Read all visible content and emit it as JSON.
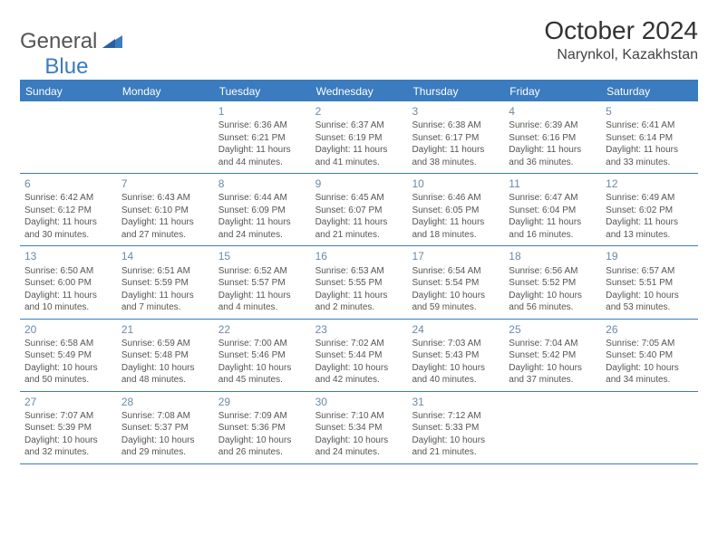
{
  "logo": {
    "text_gray": "General",
    "text_blue": "Blue"
  },
  "title": "October 2024",
  "location": "Narynkol, Kazakhstan",
  "colors": {
    "accent": "#3b7bbf",
    "text": "#333333",
    "muted": "#555555",
    "daynum": "#6a8aa8",
    "bg": "#ffffff"
  },
  "day_names": [
    "Sunday",
    "Monday",
    "Tuesday",
    "Wednesday",
    "Thursday",
    "Friday",
    "Saturday"
  ],
  "weeks": [
    [
      null,
      null,
      {
        "n": "1",
        "sr": "Sunrise: 6:36 AM",
        "ss": "Sunset: 6:21 PM",
        "dl": "Daylight: 11 hours and 44 minutes."
      },
      {
        "n": "2",
        "sr": "Sunrise: 6:37 AM",
        "ss": "Sunset: 6:19 PM",
        "dl": "Daylight: 11 hours and 41 minutes."
      },
      {
        "n": "3",
        "sr": "Sunrise: 6:38 AM",
        "ss": "Sunset: 6:17 PM",
        "dl": "Daylight: 11 hours and 38 minutes."
      },
      {
        "n": "4",
        "sr": "Sunrise: 6:39 AM",
        "ss": "Sunset: 6:16 PM",
        "dl": "Daylight: 11 hours and 36 minutes."
      },
      {
        "n": "5",
        "sr": "Sunrise: 6:41 AM",
        "ss": "Sunset: 6:14 PM",
        "dl": "Daylight: 11 hours and 33 minutes."
      }
    ],
    [
      {
        "n": "6",
        "sr": "Sunrise: 6:42 AM",
        "ss": "Sunset: 6:12 PM",
        "dl": "Daylight: 11 hours and 30 minutes."
      },
      {
        "n": "7",
        "sr": "Sunrise: 6:43 AM",
        "ss": "Sunset: 6:10 PM",
        "dl": "Daylight: 11 hours and 27 minutes."
      },
      {
        "n": "8",
        "sr": "Sunrise: 6:44 AM",
        "ss": "Sunset: 6:09 PM",
        "dl": "Daylight: 11 hours and 24 minutes."
      },
      {
        "n": "9",
        "sr": "Sunrise: 6:45 AM",
        "ss": "Sunset: 6:07 PM",
        "dl": "Daylight: 11 hours and 21 minutes."
      },
      {
        "n": "10",
        "sr": "Sunrise: 6:46 AM",
        "ss": "Sunset: 6:05 PM",
        "dl": "Daylight: 11 hours and 18 minutes."
      },
      {
        "n": "11",
        "sr": "Sunrise: 6:47 AM",
        "ss": "Sunset: 6:04 PM",
        "dl": "Daylight: 11 hours and 16 minutes."
      },
      {
        "n": "12",
        "sr": "Sunrise: 6:49 AM",
        "ss": "Sunset: 6:02 PM",
        "dl": "Daylight: 11 hours and 13 minutes."
      }
    ],
    [
      {
        "n": "13",
        "sr": "Sunrise: 6:50 AM",
        "ss": "Sunset: 6:00 PM",
        "dl": "Daylight: 11 hours and 10 minutes."
      },
      {
        "n": "14",
        "sr": "Sunrise: 6:51 AM",
        "ss": "Sunset: 5:59 PM",
        "dl": "Daylight: 11 hours and 7 minutes."
      },
      {
        "n": "15",
        "sr": "Sunrise: 6:52 AM",
        "ss": "Sunset: 5:57 PM",
        "dl": "Daylight: 11 hours and 4 minutes."
      },
      {
        "n": "16",
        "sr": "Sunrise: 6:53 AM",
        "ss": "Sunset: 5:55 PM",
        "dl": "Daylight: 11 hours and 2 minutes."
      },
      {
        "n": "17",
        "sr": "Sunrise: 6:54 AM",
        "ss": "Sunset: 5:54 PM",
        "dl": "Daylight: 10 hours and 59 minutes."
      },
      {
        "n": "18",
        "sr": "Sunrise: 6:56 AM",
        "ss": "Sunset: 5:52 PM",
        "dl": "Daylight: 10 hours and 56 minutes."
      },
      {
        "n": "19",
        "sr": "Sunrise: 6:57 AM",
        "ss": "Sunset: 5:51 PM",
        "dl": "Daylight: 10 hours and 53 minutes."
      }
    ],
    [
      {
        "n": "20",
        "sr": "Sunrise: 6:58 AM",
        "ss": "Sunset: 5:49 PM",
        "dl": "Daylight: 10 hours and 50 minutes."
      },
      {
        "n": "21",
        "sr": "Sunrise: 6:59 AM",
        "ss": "Sunset: 5:48 PM",
        "dl": "Daylight: 10 hours and 48 minutes."
      },
      {
        "n": "22",
        "sr": "Sunrise: 7:00 AM",
        "ss": "Sunset: 5:46 PM",
        "dl": "Daylight: 10 hours and 45 minutes."
      },
      {
        "n": "23",
        "sr": "Sunrise: 7:02 AM",
        "ss": "Sunset: 5:44 PM",
        "dl": "Daylight: 10 hours and 42 minutes."
      },
      {
        "n": "24",
        "sr": "Sunrise: 7:03 AM",
        "ss": "Sunset: 5:43 PM",
        "dl": "Daylight: 10 hours and 40 minutes."
      },
      {
        "n": "25",
        "sr": "Sunrise: 7:04 AM",
        "ss": "Sunset: 5:42 PM",
        "dl": "Daylight: 10 hours and 37 minutes."
      },
      {
        "n": "26",
        "sr": "Sunrise: 7:05 AM",
        "ss": "Sunset: 5:40 PM",
        "dl": "Daylight: 10 hours and 34 minutes."
      }
    ],
    [
      {
        "n": "27",
        "sr": "Sunrise: 7:07 AM",
        "ss": "Sunset: 5:39 PM",
        "dl": "Daylight: 10 hours and 32 minutes."
      },
      {
        "n": "28",
        "sr": "Sunrise: 7:08 AM",
        "ss": "Sunset: 5:37 PM",
        "dl": "Daylight: 10 hours and 29 minutes."
      },
      {
        "n": "29",
        "sr": "Sunrise: 7:09 AM",
        "ss": "Sunset: 5:36 PM",
        "dl": "Daylight: 10 hours and 26 minutes."
      },
      {
        "n": "30",
        "sr": "Sunrise: 7:10 AM",
        "ss": "Sunset: 5:34 PM",
        "dl": "Daylight: 10 hours and 24 minutes."
      },
      {
        "n": "31",
        "sr": "Sunrise: 7:12 AM",
        "ss": "Sunset: 5:33 PM",
        "dl": "Daylight: 10 hours and 21 minutes."
      },
      null,
      null
    ]
  ]
}
